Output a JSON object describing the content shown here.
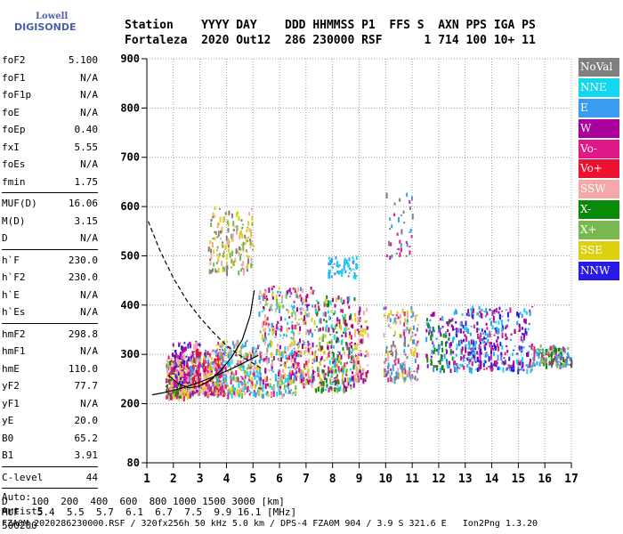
{
  "logo": {
    "line1": "Lowell",
    "line2": "DIGISONDE"
  },
  "header": {
    "line1": "Station    YYYY DAY    DDD HHMMSS P1  FFS S  AXN PPS IGA PS",
    "line2": "Fortaleza  2020 Out12  286 230000 RSF      1 714 100 10+ 11"
  },
  "params1": [
    {
      "name": "foF2",
      "value": "5.100"
    },
    {
      "name": "foF1",
      "value": "N/A"
    },
    {
      "name": "foF1p",
      "value": "N/A"
    },
    {
      "name": "foE",
      "value": "N/A"
    },
    {
      "name": "foEp",
      "value": "0.40"
    },
    {
      "name": "fxI",
      "value": "5.55"
    },
    {
      "name": "foEs",
      "value": "N/A"
    },
    {
      "name": "fmin",
      "value": "1.75"
    }
  ],
  "params2": [
    {
      "name": "MUF(D)",
      "value": "16.06"
    },
    {
      "name": "M(D)",
      "value": "3.15"
    },
    {
      "name": "D",
      "value": "N/A"
    }
  ],
  "params3": [
    {
      "name": "h`F",
      "value": "230.0"
    },
    {
      "name": "h`F2",
      "value": "230.0"
    },
    {
      "name": "h`E",
      "value": "N/A"
    },
    {
      "name": "h`Es",
      "value": "N/A"
    }
  ],
  "params4": [
    {
      "name": "hmF2",
      "value": "298.8"
    },
    {
      "name": "hmF1",
      "value": "N/A"
    },
    {
      "name": "hmE",
      "value": "110.0"
    },
    {
      "name": "yF2",
      "value": "77.7"
    },
    {
      "name": "yF1",
      "value": "N/A"
    },
    {
      "name": "yE",
      "value": "20.0"
    },
    {
      "name": "B0",
      "value": "65.2"
    },
    {
      "name": "B1",
      "value": "3.91"
    }
  ],
  "params5": [
    {
      "name": "C-level",
      "value": "44"
    }
  ],
  "auto": {
    "line1": "Auto:",
    "line2": "Artist5",
    "line3": "500200"
  },
  "legend": [
    {
      "label": "NoVal",
      "color": "#808080"
    },
    {
      "label": "NNE",
      "color": "#11d8f0"
    },
    {
      "label": "E",
      "color": "#3a9cf0"
    },
    {
      "label": "W",
      "color": "#a8009c"
    },
    {
      "label": "Vo-",
      "color": "#e0198a"
    },
    {
      "label": "Vo+",
      "color": "#ee1030"
    },
    {
      "label": "SSW",
      "color": "#f4a8a8"
    },
    {
      "label": "X-",
      "color": "#0a8a0a"
    },
    {
      "label": "X+",
      "color": "#78b850"
    },
    {
      "label": "SSE",
      "color": "#dcd010"
    },
    {
      "label": "NNW",
      "color": "#2a1ae8"
    }
  ],
  "footer": {
    "line1": "D    100  200  400  600  800 1000 1500 3000 [km]",
    "line2": "MUF   5.4  5.5  5.7  6.1  6.7  7.5  9.9 16.1 [MHz]",
    "line3": "FZA0M_2020286230000.RSF / 320fx256h 50 kHz 5.0 km / DPS-4 FZA0M 904 / 3.9 S 321.6 E   Ion2Png 1.3.20"
  },
  "chart_data": {
    "type": "scatter",
    "xlim": [
      1,
      17
    ],
    "ylim": [
      80,
      900
    ],
    "x_ticks": [
      1,
      2,
      3,
      4,
      5,
      6,
      7,
      8,
      9,
      10,
      11,
      12,
      13,
      14,
      15,
      16,
      17
    ],
    "y_ticks": [
      80,
      200,
      300,
      400,
      500,
      600,
      700,
      800,
      900
    ],
    "grid": true,
    "legend_position": "right",
    "traces": [
      {
        "style": "solid",
        "x": [
          1.2,
          1.6,
          2.0,
          2.4,
          2.8,
          3.2,
          3.6,
          4.0,
          4.4,
          4.8,
          5.2
        ],
        "y": [
          218,
          222,
          227,
          233,
          240,
          248,
          257,
          266,
          276,
          287,
          298
        ]
      },
      {
        "style": "solid",
        "x": [
          1.8,
          2.2,
          2.6,
          3.0,
          3.4,
          3.8,
          4.2,
          4.6,
          4.9,
          5.05
        ],
        "y": [
          258,
          240,
          232,
          236,
          248,
          268,
          295,
          330,
          380,
          430
        ]
      },
      {
        "style": "dashed",
        "x": [
          1.05,
          1.5,
          2.0,
          2.5,
          3.0,
          3.5,
          4.0,
          4.5,
          5.0,
          5.3
        ],
        "y": [
          570,
          510,
          455,
          410,
          375,
          345,
          318,
          298,
          282,
          272
        ]
      }
    ],
    "echo_clusters": [
      {
        "x": [
          1.7,
          2.6
        ],
        "y": [
          215,
          300
        ],
        "colors": [
          "#f4a8a8",
          "#0a8a0a",
          "#dcd010",
          "#e0198a"
        ],
        "density": 260
      },
      {
        "x": [
          1.9,
          3.0
        ],
        "y": [
          240,
          330
        ],
        "colors": [
          "#a8009c",
          "#e0198a",
          "#f4a8a8",
          "#2a1ae8"
        ],
        "density": 200
      },
      {
        "x": [
          2.6,
          3.9
        ],
        "y": [
          220,
          310
        ],
        "colors": [
          "#e0198a",
          "#f4a8a8",
          "#dcd010",
          "#ee1030",
          "#a8009c",
          "#3a9cf0"
        ],
        "density": 300
      },
      {
        "x": [
          3.5,
          5.2
        ],
        "y": [
          220,
          330
        ],
        "colors": [
          "#3a9cf0",
          "#e0198a",
          "#f4a8a8",
          "#dcd010",
          "#11d8f0",
          "#78b850"
        ],
        "density": 300
      },
      {
        "x": [
          3.3,
          5.0
        ],
        "y": [
          470,
          600
        ],
        "colors": [
          "#dcd010",
          "#f4a8a8",
          "#78b850",
          "#808080"
        ],
        "density": 170
      },
      {
        "x": [
          5.2,
          6.6
        ],
        "y": [
          220,
          440
        ],
        "colors": [
          "#dcd010",
          "#3a9cf0",
          "#11d8f0",
          "#e0198a",
          "#a8009c",
          "#f4a8a8",
          "#78b850"
        ],
        "density": 320
      },
      {
        "x": [
          6.5,
          7.3
        ],
        "y": [
          240,
          440
        ],
        "colors": [
          "#f4a8a8",
          "#dcd010",
          "#e0198a",
          "#a8009c",
          "#3a9cf0"
        ],
        "density": 170
      },
      {
        "x": [
          7.3,
          8.8
        ],
        "y": [
          230,
          420
        ],
        "colors": [
          "#dcd010",
          "#a8009c",
          "#78b850",
          "#11d8f0",
          "#e0198a",
          "#0a8a0a"
        ],
        "density": 320
      },
      {
        "x": [
          7.8,
          8.9
        ],
        "y": [
          460,
          500
        ],
        "colors": [
          "#11d8f0",
          "#3a9cf0"
        ],
        "density": 60
      },
      {
        "x": [
          8.8,
          9.3
        ],
        "y": [
          250,
          400
        ],
        "colors": [
          "#dcd010",
          "#f4a8a8",
          "#a8009c"
        ],
        "density": 90
      },
      {
        "x": [
          9.9,
          11.2
        ],
        "y": [
          250,
          400
        ],
        "colors": [
          "#dcd010",
          "#e0198a",
          "#3a9cf0",
          "#f4a8a8",
          "#808080"
        ],
        "density": 170
      },
      {
        "x": [
          11.5,
          12.5
        ],
        "y": [
          270,
          390
        ],
        "colors": [
          "#3a9cf0",
          "#a8009c",
          "#0a8a0a"
        ],
        "density": 110
      },
      {
        "x": [
          12.5,
          15.5
        ],
        "y": [
          270,
          400
        ],
        "colors": [
          "#2a1ae8",
          "#3a9cf0",
          "#a8009c",
          "#11d8f0",
          "#e0198a"
        ],
        "density": 380
      },
      {
        "x": [
          15.5,
          17
        ],
        "y": [
          280,
          320
        ],
        "colors": [
          "#0a8a0a",
          "#78b850",
          "#3a9cf0",
          "#e0198a"
        ],
        "density": 150
      },
      {
        "x": [
          10.0,
          11.0
        ],
        "y": [
          500,
          630
        ],
        "colors": [
          "#3a9cf0",
          "#e0198a",
          "#808080"
        ],
        "density": 40
      }
    ]
  }
}
